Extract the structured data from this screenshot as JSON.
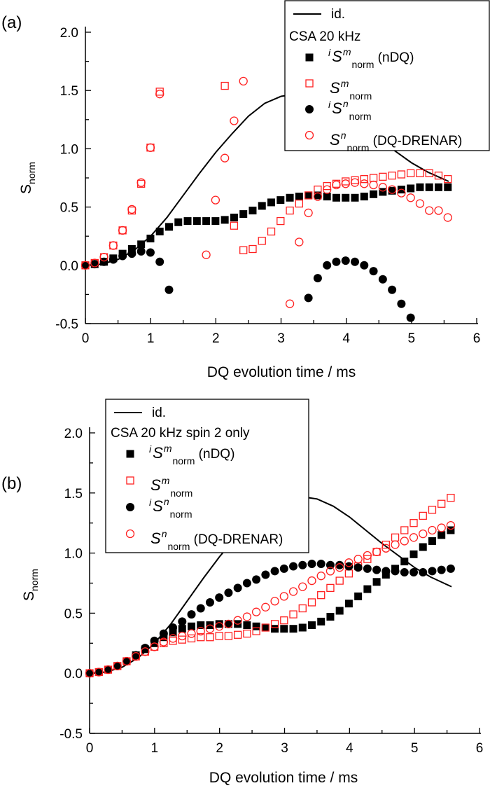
{
  "chart_data": [
    {
      "type": "scatter",
      "panel_label": "(a)",
      "xlabel": "DQ evolution time  /  ms",
      "ylabel": {
        "main": "S",
        "sub": "norm"
      },
      "xlim": [
        0,
        6
      ],
      "ylim": [
        -0.5,
        2.0
      ],
      "xticks": [
        "0",
        "1",
        "2",
        "3",
        "4",
        "5",
        "6"
      ],
      "yticks": [
        "-0.5",
        "0.0",
        "0.5",
        "1.0",
        "1.5",
        "2.0"
      ],
      "grid": false,
      "legend_position": "top-right",
      "legend_title": "CSA 20 kHz",
      "x_step_ms": 0.1425,
      "curve": {
        "name": "id.",
        "x": [
          0,
          0.25,
          0.5,
          0.75,
          1.0,
          1.25,
          1.5,
          1.75,
          2.0,
          2.25,
          2.5,
          2.75,
          3.0,
          3.25,
          3.5,
          3.75,
          4.0,
          4.25,
          4.5,
          4.75,
          5.0,
          5.25,
          5.57
        ],
        "y": [
          0,
          0.01,
          0.05,
          0.13,
          0.25,
          0.41,
          0.6,
          0.79,
          0.97,
          1.13,
          1.28,
          1.39,
          1.45,
          1.47,
          1.45,
          1.39,
          1.3,
          1.19,
          1.08,
          0.98,
          0.88,
          0.8,
          0.72
        ]
      },
      "series": [
        {
          "name": "iSm_norm (nDQ)",
          "label": {
            "pre": "i",
            "main": "S",
            "sup": "m",
            "sub": "norm",
            "post": " (nDQ)"
          },
          "marker": "filled-square",
          "color": "#000000",
          "values": [
            0,
            0.01,
            0.03,
            0.06,
            0.1,
            0.14,
            0.18,
            0.23,
            0.29,
            0.33,
            0.37,
            0.38,
            0.38,
            0.38,
            0.38,
            0.39,
            0.41,
            0.44,
            0.47,
            0.51,
            0.54,
            0.56,
            0.58,
            0.59,
            0.6,
            0.6,
            0.59,
            0.58,
            0.58,
            0.58,
            0.59,
            0.61,
            0.63,
            0.64,
            0.65,
            0.66,
            0.67,
            0.67,
            0.67,
            0.67
          ]
        },
        {
          "name": "Sm_norm",
          "label": {
            "pre": "",
            "main": "S",
            "sup": "m",
            "sub": "norm",
            "post": ""
          },
          "marker": "open-square",
          "color": "#ff2020",
          "values": [
            0,
            0.02,
            0.07,
            0.17,
            0.3,
            0.47,
            0.7,
            1.01,
            1.49,
            null,
            null,
            null,
            null,
            null,
            null,
            1.54,
            0.34,
            0.13,
            0.14,
            0.21,
            0.29,
            0.38,
            0.47,
            0.53,
            0.6,
            0.65,
            0.68,
            0.7,
            0.72,
            0.73,
            0.74,
            0.75,
            0.76,
            0.77,
            0.78,
            0.79,
            0.79,
            0.79,
            0.77,
            0.74
          ]
        },
        {
          "name": "iSn_norm",
          "label": {
            "pre": "i",
            "main": "S",
            "sup": "n",
            "sub": "norm",
            "post": ""
          },
          "marker": "filled-circle",
          "color": "#000000",
          "values": [
            0,
            0.01,
            0.03,
            0.05,
            0.08,
            0.1,
            0.12,
            0.11,
            0.03,
            -0.21,
            null,
            null,
            null,
            null,
            null,
            null,
            null,
            null,
            null,
            null,
            null,
            null,
            null,
            null,
            -0.28,
            -0.11,
            0.0,
            0.03,
            0.04,
            0.03,
            0.0,
            -0.05,
            -0.12,
            -0.21,
            -0.33,
            -0.45,
            null,
            null,
            null,
            null
          ]
        },
        {
          "name": "Sn_norm (DQ-DRENAR)",
          "label": {
            "pre": "",
            "main": "S",
            "sup": "n",
            "sub": "norm",
            "post": " (DQ-DRENAR)"
          },
          "marker": "open-circle",
          "color": "#ff2020",
          "values": [
            0,
            0.02,
            0.07,
            0.17,
            0.3,
            0.48,
            0.71,
            1.01,
            1.47,
            null,
            null,
            null,
            null,
            0.09,
            0.56,
            0.92,
            1.24,
            1.58,
            null,
            null,
            null,
            null,
            -0.33,
            0.2,
            0.45,
            0.59,
            0.65,
            0.69,
            0.7,
            0.71,
            0.7,
            0.69,
            0.67,
            0.65,
            0.62,
            0.58,
            0.53,
            0.47,
            0.47,
            0.41
          ]
        }
      ]
    },
    {
      "type": "scatter",
      "panel_label": "(b)",
      "xlabel": "DQ evolution time  /  ms",
      "ylabel": {
        "main": "S",
        "sub": "norm"
      },
      "xlim": [
        0,
        6
      ],
      "ylim": [
        -0.5,
        2.0
      ],
      "xticks": [
        "0",
        "1",
        "2",
        "3",
        "4",
        "5",
        "6"
      ],
      "yticks": [
        "-0.5",
        "0.0",
        "0.5",
        "1.0",
        "1.5",
        "2.0"
      ],
      "grid": false,
      "legend_position": "top-left",
      "legend_title": "CSA 20 kHz spin 2 only",
      "x_step_ms": 0.1425,
      "curve": {
        "name": "id.",
        "x": [
          0,
          0.25,
          0.5,
          0.75,
          1.0,
          1.25,
          1.5,
          1.75,
          2.0,
          2.25,
          2.5,
          2.75,
          3.0,
          3.25,
          3.5,
          3.75,
          4.0,
          4.25,
          4.5,
          4.75,
          5.0,
          5.25,
          5.57
        ],
        "y": [
          0,
          0.01,
          0.05,
          0.13,
          0.25,
          0.41,
          0.6,
          0.79,
          0.97,
          1.13,
          1.28,
          1.39,
          1.45,
          1.47,
          1.45,
          1.39,
          1.3,
          1.19,
          1.08,
          0.98,
          0.88,
          0.8,
          0.72
        ]
      },
      "series": [
        {
          "name": "iSm_norm (nDQ)",
          "label": {
            "pre": "i",
            "main": "S",
            "sup": "m",
            "sub": "norm",
            "post": " (nDQ)"
          },
          "marker": "filled-square",
          "color": "#000000",
          "values": [
            0,
            0.01,
            0.03,
            0.06,
            0.1,
            0.15,
            0.2,
            0.25,
            0.3,
            0.34,
            0.37,
            0.39,
            0.4,
            0.4,
            0.41,
            0.41,
            0.41,
            0.4,
            0.39,
            0.38,
            0.37,
            0.37,
            0.37,
            0.38,
            0.4,
            0.43,
            0.47,
            0.52,
            0.58,
            0.64,
            0.7,
            0.76,
            0.82,
            0.87,
            0.93,
            0.99,
            1.05,
            1.1,
            1.15,
            1.19
          ]
        },
        {
          "name": "Sm_norm",
          "label": {
            "pre": "",
            "main": "S",
            "sup": "m",
            "sub": "norm",
            "post": ""
          },
          "marker": "open-square",
          "color": "#ff2020",
          "values": [
            0,
            0.01,
            0.03,
            0.06,
            0.1,
            0.14,
            0.18,
            0.22,
            0.25,
            0.27,
            0.28,
            0.29,
            0.3,
            0.3,
            0.31,
            0.31,
            0.32,
            0.33,
            0.35,
            0.38,
            0.41,
            0.44,
            0.49,
            0.54,
            0.59,
            0.65,
            0.71,
            0.77,
            0.83,
            0.89,
            0.95,
            1.01,
            1.07,
            1.13,
            1.19,
            1.25,
            1.31,
            1.36,
            1.41,
            1.46
          ]
        },
        {
          "name": "iSn_norm",
          "label": {
            "pre": "i",
            "main": "S",
            "sup": "n",
            "sub": "norm",
            "post": ""
          },
          "marker": "filled-circle",
          "color": "#000000",
          "values": [
            0,
            0.01,
            0.03,
            0.06,
            0.1,
            0.15,
            0.21,
            0.27,
            0.33,
            0.38,
            0.43,
            0.49,
            0.54,
            0.59,
            0.63,
            0.67,
            0.71,
            0.75,
            0.78,
            0.82,
            0.85,
            0.87,
            0.89,
            0.9,
            0.91,
            0.91,
            0.9,
            0.9,
            0.89,
            0.88,
            0.87,
            0.86,
            0.85,
            0.85,
            0.84,
            0.84,
            0.84,
            0.85,
            0.86,
            0.87
          ]
        },
        {
          "name": "Sn_norm (DQ-DRENAR)",
          "label": {
            "pre": "",
            "main": "S",
            "sup": "n",
            "sub": "norm",
            "post": " (DQ-DRENAR)"
          },
          "marker": "open-circle",
          "color": "#ff2020",
          "values": [
            0,
            0.01,
            0.03,
            0.06,
            0.1,
            0.14,
            0.18,
            0.22,
            0.26,
            0.29,
            0.31,
            0.33,
            0.35,
            0.37,
            0.39,
            0.41,
            0.44,
            0.47,
            0.51,
            0.55,
            0.6,
            0.64,
            0.68,
            0.72,
            0.77,
            0.81,
            0.85,
            0.88,
            0.92,
            0.95,
            0.98,
            1.01,
            1.04,
            1.07,
            1.1,
            1.13,
            1.16,
            1.19,
            1.21,
            1.23
          ]
        }
      ]
    }
  ]
}
